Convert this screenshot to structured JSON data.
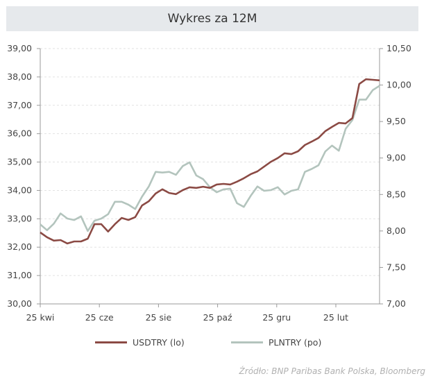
{
  "chart_data": {
    "type": "line",
    "title": "Wykres za 12M",
    "x_ticks": [
      "25 kwi",
      "25 cze",
      "25 sie",
      "25 paź",
      "25 gru",
      "25 lut"
    ],
    "y_left": {
      "ticks": [
        "30,00",
        "31,00",
        "32,00",
        "33,00",
        "34,00",
        "35,00",
        "36,00",
        "37,00",
        "38,00",
        "39,00"
      ],
      "range": [
        30,
        39
      ]
    },
    "y_right": {
      "ticks": [
        "7,00",
        "7,50",
        "8,00",
        "8,50",
        "9,00",
        "9,50",
        "10,00",
        "10,50"
      ],
      "range": [
        7.0,
        10.5
      ]
    },
    "grid": "horizontal dashed",
    "legend_position": "bottom",
    "series": [
      {
        "name": "USDTRY (lo)",
        "axis": "left",
        "color": "#8b4a44",
        "values": [
          32.52,
          32.35,
          32.23,
          32.25,
          32.13,
          32.2,
          32.2,
          32.3,
          32.81,
          32.81,
          32.55,
          32.81,
          33.03,
          32.96,
          33.06,
          33.47,
          33.62,
          33.89,
          34.04,
          33.91,
          33.87,
          34.01,
          34.11,
          34.09,
          34.13,
          34.09,
          34.21,
          34.23,
          34.21,
          34.31,
          34.43,
          34.57,
          34.67,
          34.84,
          35.01,
          35.14,
          35.31,
          35.28,
          35.38,
          35.6,
          35.72,
          35.85,
          36.09,
          36.24,
          36.38,
          36.36,
          36.55,
          37.75,
          37.92,
          37.9,
          37.88
        ]
      },
      {
        "name": "PLNTRY (po)",
        "axis": "right",
        "color": "#b3c4bd",
        "values": [
          8.09,
          8.01,
          8.1,
          8.24,
          8.17,
          8.15,
          8.2,
          8.0,
          8.14,
          8.17,
          8.23,
          8.4,
          8.4,
          8.36,
          8.3,
          8.47,
          8.61,
          8.81,
          8.8,
          8.81,
          8.77,
          8.89,
          8.94,
          8.76,
          8.71,
          8.6,
          8.53,
          8.57,
          8.58,
          8.38,
          8.33,
          8.48,
          8.61,
          8.55,
          8.56,
          8.6,
          8.5,
          8.55,
          8.57,
          8.81,
          8.85,
          8.9,
          9.09,
          9.17,
          9.1,
          9.4,
          9.52,
          9.8,
          9.8,
          9.93,
          9.99
        ]
      }
    ]
  },
  "source": "Źródło:  BNP Paribas Bank Polska, Bloomberg"
}
